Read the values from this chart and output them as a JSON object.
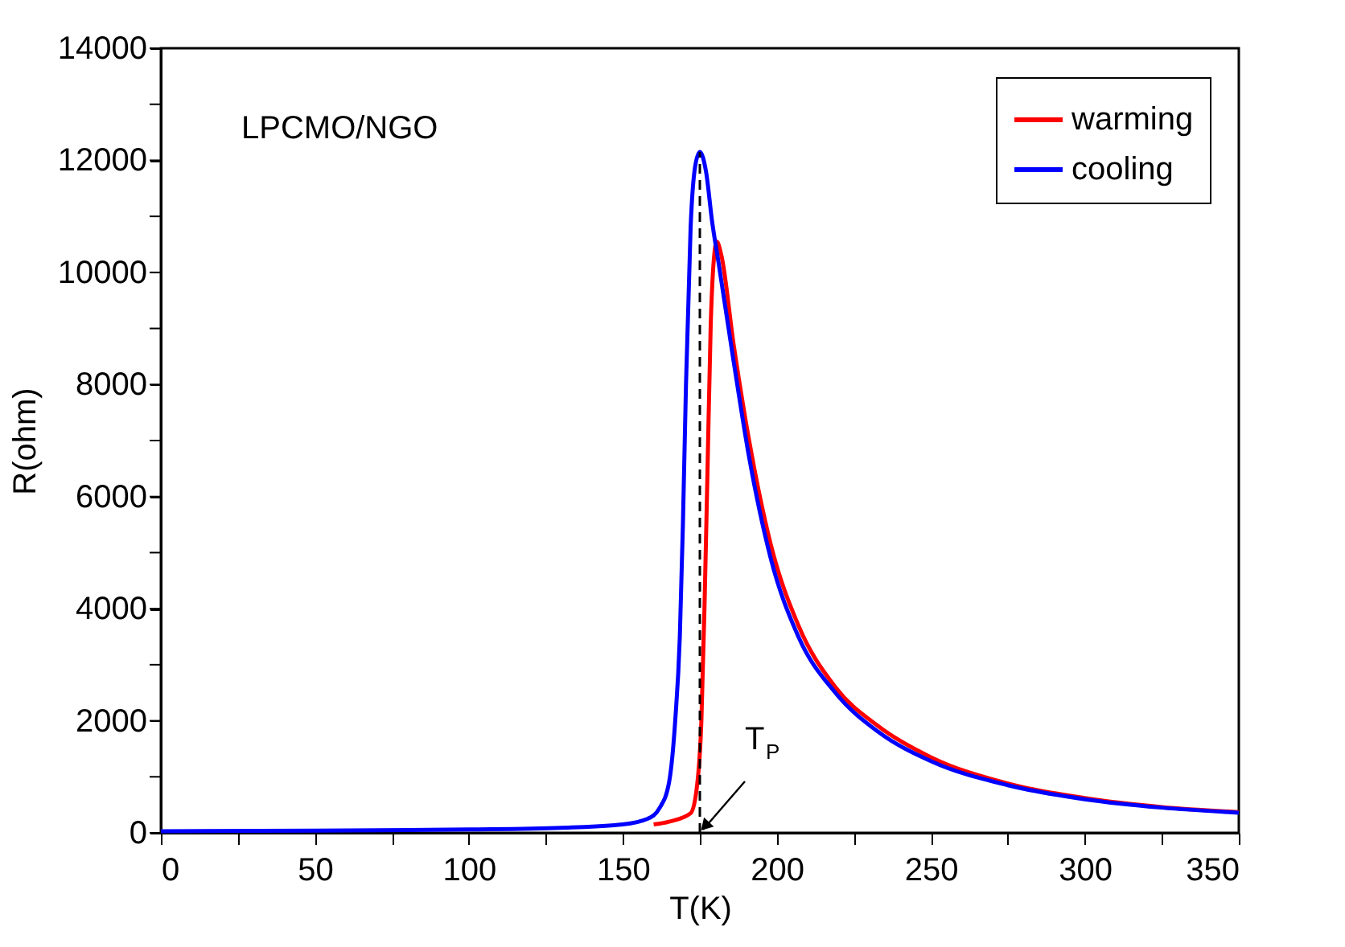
{
  "chart_data": {
    "type": "line",
    "xlabel": "T(K)",
    "ylabel": "R(ohm)",
    "xlim": [
      0,
      350
    ],
    "ylim": [
      0,
      14000
    ],
    "xticks": [
      0,
      {
        "value": 25,
        "label": null
      },
      50,
      {
        "value": 75,
        "label": null
      },
      100,
      {
        "value": 125,
        "label": null
      },
      150,
      {
        "value": 175,
        "label": null
      },
      200,
      {
        "value": 225,
        "label": null
      },
      250,
      {
        "value": 275,
        "label": null
      },
      300,
      {
        "value": 325,
        "label": null
      },
      350
    ],
    "yticks": [
      0,
      {
        "value": 1000,
        "label": null
      },
      2000,
      {
        "value": 3000,
        "label": null
      },
      4000,
      {
        "value": 5000,
        "label": null
      },
      6000,
      {
        "value": 7000,
        "label": null
      },
      8000,
      {
        "value": 9000,
        "label": null
      },
      10000,
      {
        "value": 11000,
        "label": null
      },
      12000,
      {
        "value": 13000,
        "label": null
      },
      14000
    ],
    "grid": false,
    "legend": "top right",
    "marker": "none",
    "line_style": "solid",
    "series": [
      {
        "name": "warming",
        "color": "#ff0000",
        "x": [
          160,
          165,
          172,
          174,
          175.5,
          176.5,
          177.5,
          178.5,
          179.5,
          180.5,
          182,
          186,
          191,
          198,
          207,
          219,
          233,
          250,
          275,
          300,
          325,
          350
        ],
        "values": [
          150,
          200,
          350,
          800,
          2000,
          4000,
          6500,
          9000,
          10200,
          10550,
          10300,
          8700,
          7000,
          5150,
          3700,
          2600,
          1900,
          1350,
          880,
          620,
          460,
          370
        ]
      },
      {
        "name": "cooling",
        "color": "#0000ff",
        "x": [
          0,
          50,
          100,
          130,
          150,
          158,
          162,
          165,
          167,
          168.5,
          169.5,
          170.5,
          172,
          173.5,
          175,
          177,
          179,
          181,
          186,
          191,
          198,
          207,
          219,
          233,
          250,
          275,
          300,
          325,
          350
        ],
        "values": [
          30,
          40,
          60,
          90,
          150,
          250,
          450,
          900,
          2000,
          3500,
          5500,
          8000,
          10800,
          11900,
          12150,
          11800,
          10900,
          10200,
          8400,
          6700,
          4900,
          3500,
          2500,
          1800,
          1280,
          850,
          600,
          450,
          360
        ]
      }
    ],
    "ref_lines": [
      {
        "axis": "x",
        "value": 175,
        "color": "#000000",
        "line_style": "dashed"
      }
    ],
    "annotations": [
      "LPCMO/NGO",
      {
        "text": "T$_{P}$",
        "x": 175,
        "y": 0
      }
    ]
  }
}
